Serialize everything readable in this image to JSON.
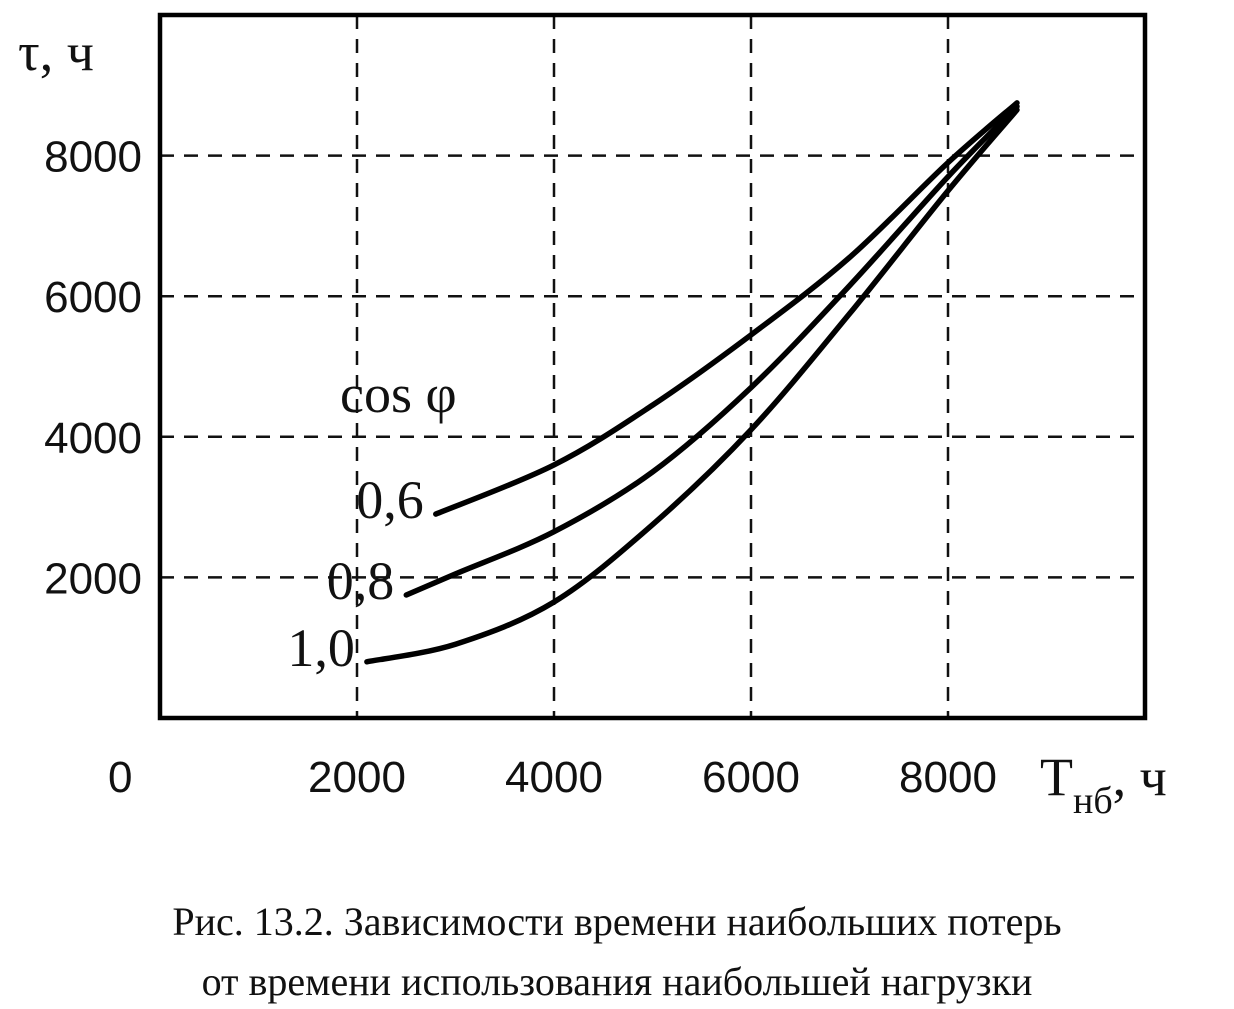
{
  "chart_data": {
    "type": "line",
    "title": "",
    "ylabel": "τ, ч",
    "xlabel_main": "T",
    "xlabel_sub": "нб",
    "xlabel_unit": ", ч",
    "legend_title": "cos φ",
    "origin_label": "0",
    "xlim": [
      0,
      10000
    ],
    "ylim": [
      0,
      10000
    ],
    "xticks": [
      2000,
      4000,
      6000,
      8000
    ],
    "yticks": [
      2000,
      4000,
      6000,
      8000
    ],
    "grid": true,
    "series": [
      {
        "name": "0,6",
        "points": [
          [
            2800,
            2900
          ],
          [
            4000,
            3600
          ],
          [
            5000,
            4450
          ],
          [
            6000,
            5450
          ],
          [
            7000,
            6550
          ],
          [
            8000,
            7900
          ],
          [
            8700,
            8750
          ]
        ]
      },
      {
        "name": "0,8",
        "points": [
          [
            2500,
            1750
          ],
          [
            3000,
            2050
          ],
          [
            4000,
            2650
          ],
          [
            5000,
            3500
          ],
          [
            6000,
            4700
          ],
          [
            7000,
            6150
          ],
          [
            8000,
            7700
          ],
          [
            8700,
            8700
          ]
        ]
      },
      {
        "name": "1,0",
        "points": [
          [
            2100,
            800
          ],
          [
            3000,
            1050
          ],
          [
            4000,
            1650
          ],
          [
            5000,
            2750
          ],
          [
            6000,
            4100
          ],
          [
            7000,
            5750
          ],
          [
            8000,
            7500
          ],
          [
            8700,
            8650
          ]
        ]
      }
    ],
    "caption_line1": "Рис. 13.2. Зависимости времени наибольших потерь",
    "caption_line2": "от времени использования наибольшей нагрузки"
  }
}
